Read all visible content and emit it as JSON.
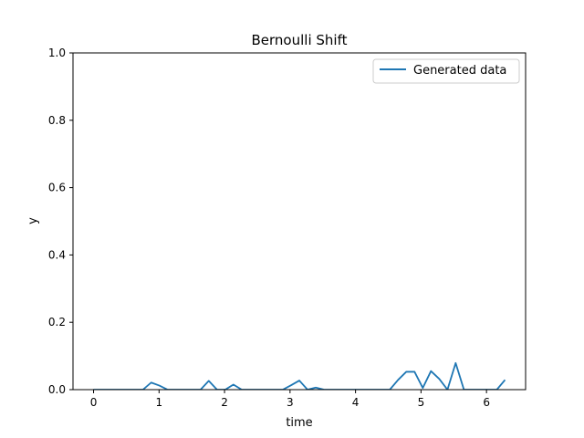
{
  "chart_data": {
    "type": "line",
    "title": "Bernoulli Shift",
    "xlabel": "time",
    "ylabel": "y",
    "xlim": [
      -0.314,
      6.597
    ],
    "ylim": [
      0.0,
      1.0
    ],
    "xticks": [
      0,
      1,
      2,
      3,
      4,
      5,
      6
    ],
    "yticks": [
      0.0,
      0.2,
      0.4,
      0.6,
      0.8,
      1.0
    ],
    "xtick_labels": [
      "0",
      "1",
      "2",
      "3",
      "4",
      "5",
      "6"
    ],
    "ytick_labels": [
      "0.0",
      "0.2",
      "0.4",
      "0.6",
      "0.8",
      "1.0"
    ],
    "grid": false,
    "legend_position": "top-right",
    "series": [
      {
        "name": "Generated data",
        "color": "#1f77b4",
        "x": [
          0.0,
          0.126,
          0.251,
          0.377,
          0.503,
          0.628,
          0.754,
          0.88,
          1.005,
          1.131,
          1.257,
          1.382,
          1.508,
          1.634,
          1.759,
          1.885,
          2.011,
          2.136,
          2.262,
          2.388,
          2.513,
          2.639,
          2.765,
          2.89,
          3.016,
          3.142,
          3.267,
          3.393,
          3.519,
          3.644,
          3.77,
          3.896,
          4.021,
          4.147,
          4.273,
          4.398,
          4.524,
          4.65,
          4.775,
          4.901,
          5.027,
          5.152,
          5.278,
          5.404,
          5.529,
          5.655,
          5.781,
          5.906,
          6.032,
          6.158,
          6.283
        ],
        "values": [
          0.0,
          0.0,
          0.0,
          0.0,
          0.0,
          0.0,
          0.0,
          0.021,
          0.012,
          0.0,
          0.0,
          0.0,
          0.0,
          0.0,
          0.026,
          0.0,
          0.0,
          0.015,
          0.0,
          0.0,
          0.0,
          0.0,
          0.0,
          0.0,
          0.013,
          0.027,
          0.0,
          0.006,
          0.0,
          0.0,
          0.0,
          0.0,
          0.0,
          0.0,
          0.0,
          0.0,
          0.0,
          0.029,
          0.053,
          0.053,
          0.005,
          0.055,
          0.032,
          0.0,
          0.079,
          0.0,
          0.0,
          0.0,
          0.0,
          0.0,
          0.029
        ]
      }
    ]
  }
}
